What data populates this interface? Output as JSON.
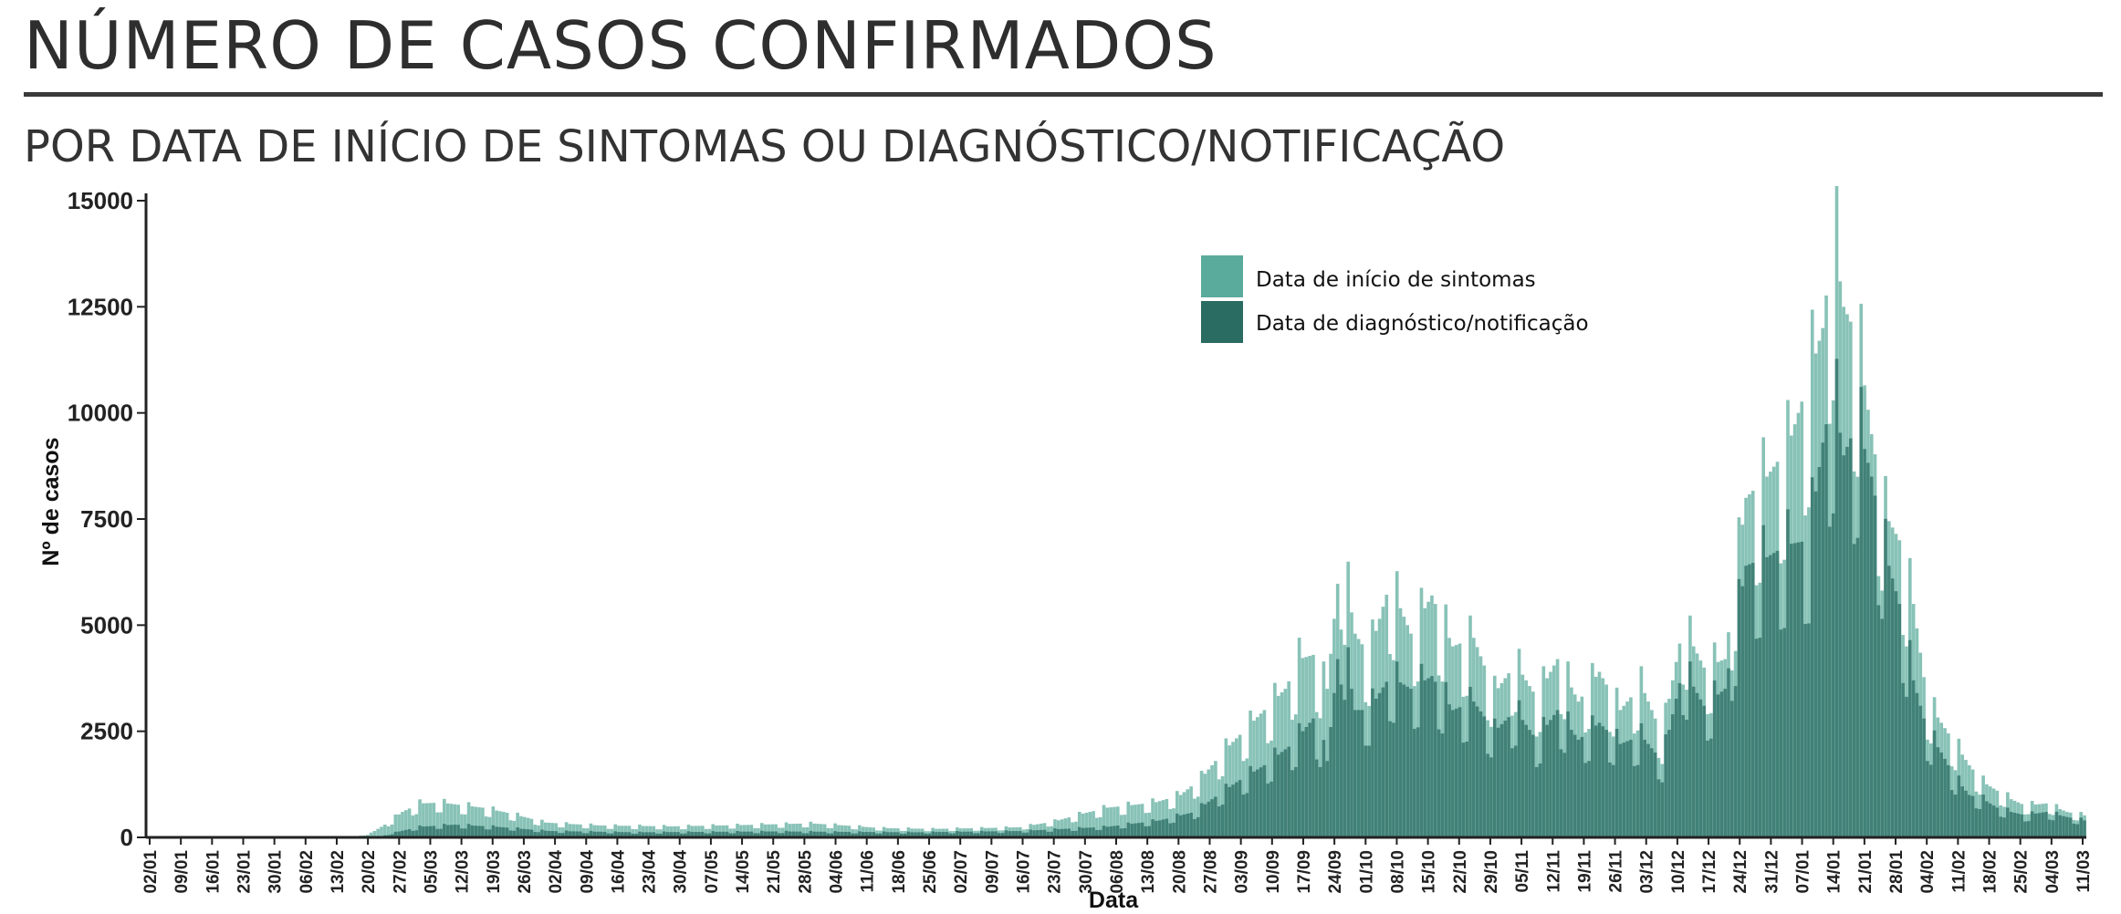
{
  "header": {
    "title": "NÚMERO DE CASOS CONFIRMADOS",
    "subtitle": "POR DATA DE INÍCIO DE SINTOMAS OU DIAGNÓSTICO/NOTIFICAÇÃO"
  },
  "chart_data": {
    "type": "bar",
    "stacking": "overlaid",
    "xlabel": "Data",
    "ylabel": "Nº de casos",
    "ylim": [
      0,
      15000
    ],
    "yticks": [
      0,
      2500,
      5000,
      7500,
      10000,
      12500,
      15000
    ],
    "x_tick_labels": [
      "02/01",
      "09/01",
      "16/01",
      "23/01",
      "30/01",
      "06/02",
      "13/02",
      "20/02",
      "27/02",
      "05/03",
      "12/03",
      "19/03",
      "26/03",
      "02/04",
      "09/04",
      "16/04",
      "23/04",
      "30/04",
      "07/05",
      "14/05",
      "21/05",
      "28/05",
      "04/06",
      "11/06",
      "18/06",
      "25/06",
      "02/07",
      "09/07",
      "16/07",
      "23/07",
      "30/07",
      "06/08",
      "13/08",
      "20/08",
      "27/08",
      "03/09",
      "10/09",
      "17/09",
      "24/09",
      "01/10",
      "08/10",
      "15/10",
      "22/10",
      "29/10",
      "05/11",
      "12/11",
      "19/11",
      "26/11",
      "03/12",
      "10/12",
      "17/12",
      "24/12",
      "31/12",
      "07/01",
      "14/01",
      "21/01",
      "28/01",
      "04/02",
      "11/02",
      "18/02",
      "25/02",
      "04/03",
      "11/03"
    ],
    "legend": {
      "position": "top-right"
    },
    "series": [
      {
        "name": "Data de início de sintomas",
        "color": "#5aab9b",
        "anchors": [
          [
            0,
            0
          ],
          [
            59,
            0
          ],
          [
            64,
            100
          ],
          [
            68,
            300
          ],
          [
            73,
            600
          ],
          [
            78,
            800
          ],
          [
            84,
            820
          ],
          [
            90,
            760
          ],
          [
            96,
            700
          ],
          [
            102,
            600
          ],
          [
            108,
            480
          ],
          [
            114,
            350
          ],
          [
            120,
            320
          ],
          [
            130,
            280
          ],
          [
            150,
            260
          ],
          [
            170,
            290
          ],
          [
            190,
            330
          ],
          [
            200,
            280
          ],
          [
            210,
            220
          ],
          [
            225,
            200
          ],
          [
            240,
            220
          ],
          [
            250,
            240
          ],
          [
            260,
            380
          ],
          [
            268,
            560
          ],
          [
            275,
            700
          ],
          [
            282,
            760
          ],
          [
            289,
            830
          ],
          [
            296,
            1000
          ],
          [
            302,
            1400
          ],
          [
            308,
            2000
          ],
          [
            314,
            2500
          ],
          [
            320,
            3000
          ],
          [
            326,
            3500
          ],
          [
            330,
            4200
          ],
          [
            334,
            4300
          ],
          [
            338,
            3500
          ],
          [
            342,
            6800
          ],
          [
            346,
            4800
          ],
          [
            350,
            4300
          ],
          [
            356,
            6000
          ],
          [
            362,
            4800
          ],
          [
            368,
            5700
          ],
          [
            374,
            4500
          ],
          [
            380,
            4700
          ],
          [
            386,
            3400
          ],
          [
            392,
            4100
          ],
          [
            398,
            3300
          ],
          [
            404,
            4200
          ],
          [
            410,
            3200
          ],
          [
            416,
            3900
          ],
          [
            422,
            3000
          ],
          [
            428,
            3600
          ],
          [
            434,
            2400
          ],
          [
            440,
            5000
          ],
          [
            446,
            4000
          ],
          [
            452,
            4200
          ],
          [
            458,
            8000
          ],
          [
            464,
            8500
          ],
          [
            470,
            9200
          ],
          [
            476,
            10800
          ],
          [
            480,
            12000
          ],
          [
            483,
            14300
          ],
          [
            486,
            12500
          ],
          [
            490,
            11800
          ],
          [
            494,
            9500
          ],
          [
            498,
            7600
          ],
          [
            502,
            7000
          ],
          [
            506,
            5500
          ],
          [
            510,
            3200
          ],
          [
            514,
            2700
          ],
          [
            518,
            2200
          ],
          [
            522,
            1700
          ],
          [
            526,
            1300
          ],
          [
            530,
            1100
          ],
          [
            534,
            900
          ],
          [
            538,
            750
          ],
          [
            544,
            800
          ],
          [
            550,
            600
          ],
          [
            555,
            520
          ]
        ]
      },
      {
        "name": "Data de diagnóstico/notificação",
        "color": "#2a6b62",
        "anchors": [
          [
            0,
            0
          ],
          [
            66,
            0
          ],
          [
            70,
            100
          ],
          [
            78,
            250
          ],
          [
            88,
            300
          ],
          [
            100,
            250
          ],
          [
            115,
            150
          ],
          [
            140,
            120
          ],
          [
            180,
            140
          ],
          [
            220,
            120
          ],
          [
            250,
            150
          ],
          [
            275,
            250
          ],
          [
            290,
            400
          ],
          [
            300,
            600
          ],
          [
            305,
            900
          ],
          [
            312,
            1300
          ],
          [
            320,
            1700
          ],
          [
            328,
            2200
          ],
          [
            334,
            2800
          ],
          [
            338,
            1800
          ],
          [
            342,
            5000
          ],
          [
            346,
            3000
          ],
          [
            350,
            3000
          ],
          [
            356,
            3800
          ],
          [
            362,
            3500
          ],
          [
            368,
            3800
          ],
          [
            374,
            3000
          ],
          [
            380,
            3200
          ],
          [
            386,
            2500
          ],
          [
            392,
            3000
          ],
          [
            398,
            2300
          ],
          [
            404,
            3000
          ],
          [
            410,
            2300
          ],
          [
            416,
            2700
          ],
          [
            422,
            2200
          ],
          [
            428,
            2400
          ],
          [
            434,
            1800
          ],
          [
            440,
            4000
          ],
          [
            446,
            3100
          ],
          [
            452,
            3500
          ],
          [
            458,
            6400
          ],
          [
            464,
            6600
          ],
          [
            470,
            6900
          ],
          [
            476,
            7000
          ],
          [
            480,
            9300
          ],
          [
            483,
            10600
          ],
          [
            486,
            9000
          ],
          [
            490,
            9800
          ],
          [
            494,
            8500
          ],
          [
            498,
            6700
          ],
          [
            502,
            5500
          ],
          [
            506,
            3700
          ],
          [
            510,
            2500
          ],
          [
            514,
            2000
          ],
          [
            518,
            1400
          ],
          [
            522,
            1000
          ],
          [
            526,
            900
          ],
          [
            530,
            700
          ],
          [
            534,
            600
          ],
          [
            538,
            520
          ],
          [
            544,
            600
          ],
          [
            550,
            480
          ],
          [
            555,
            400
          ]
        ]
      }
    ],
    "days": 556
  },
  "colors": {
    "axis": "#222222",
    "rule": "#3a3a3a"
  }
}
